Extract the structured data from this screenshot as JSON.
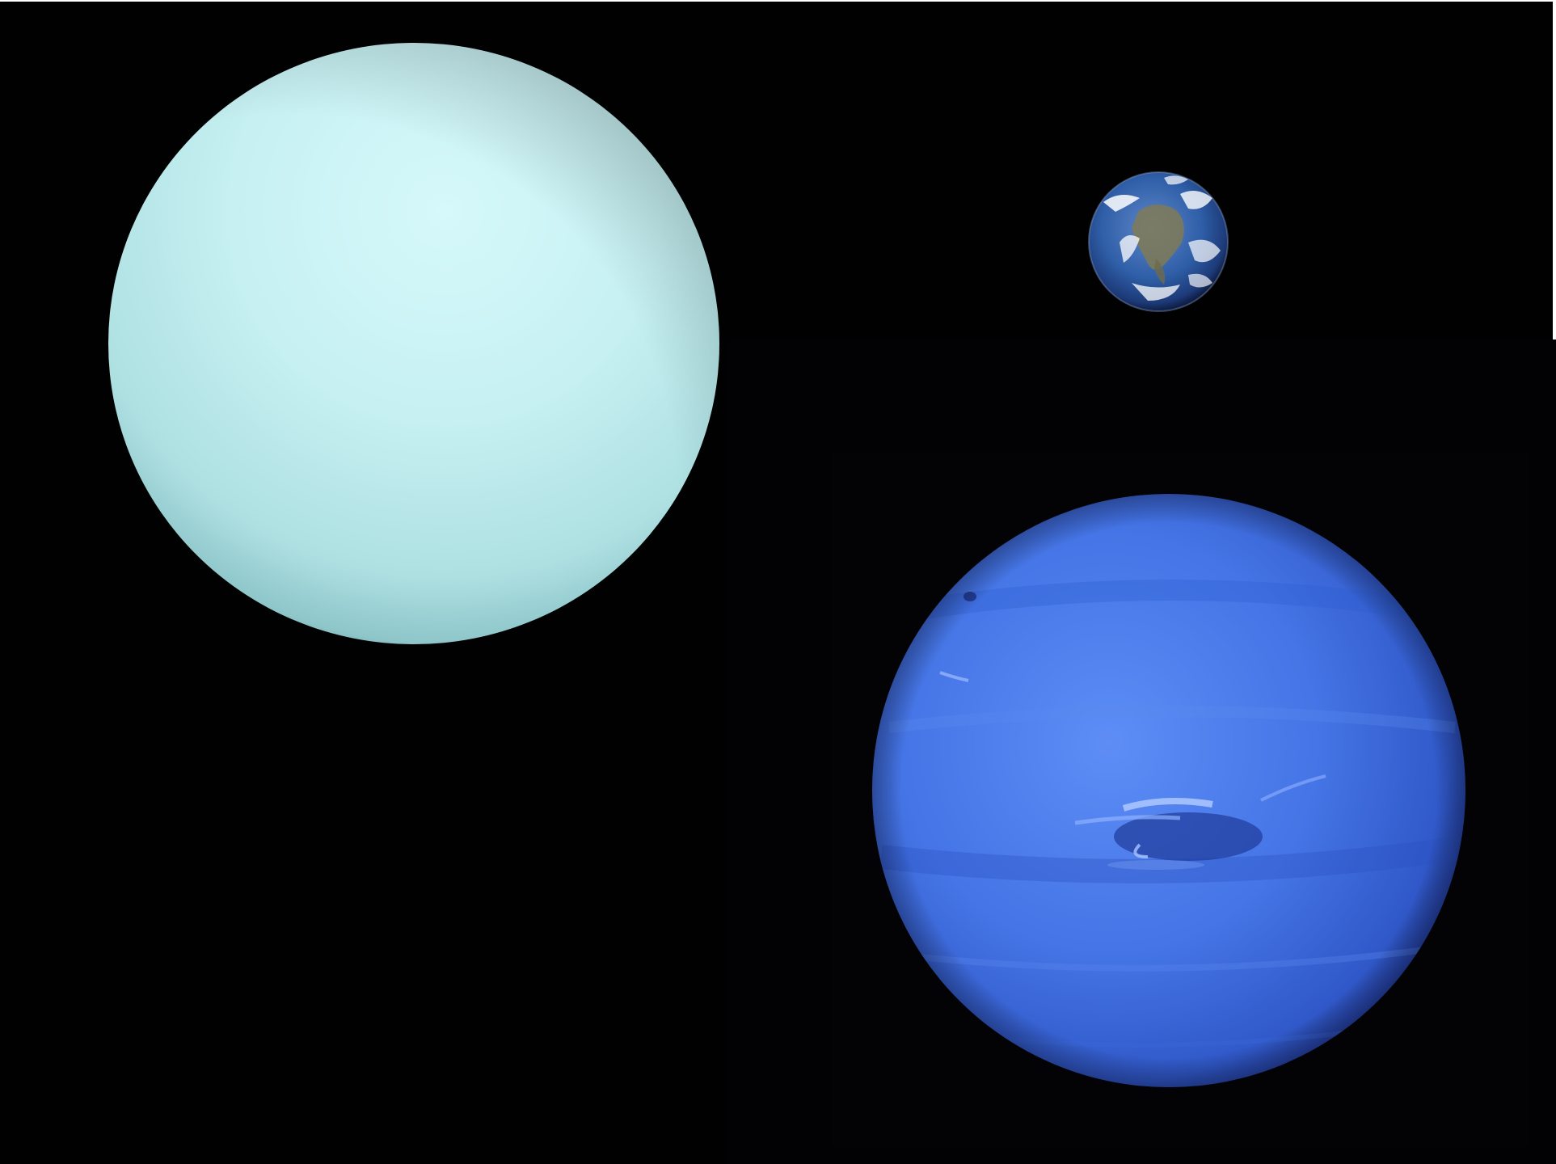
{
  "scene": {
    "description_colors": {
      "space": "#010101",
      "uranus": "#bfeef0",
      "earth": "#2f5fa8",
      "neptune": "#3f6ee0"
    },
    "planets": [
      {
        "name": "uranus-icon"
      },
      {
        "name": "earth-icon"
      },
      {
        "name": "neptune-icon"
      }
    ]
  }
}
